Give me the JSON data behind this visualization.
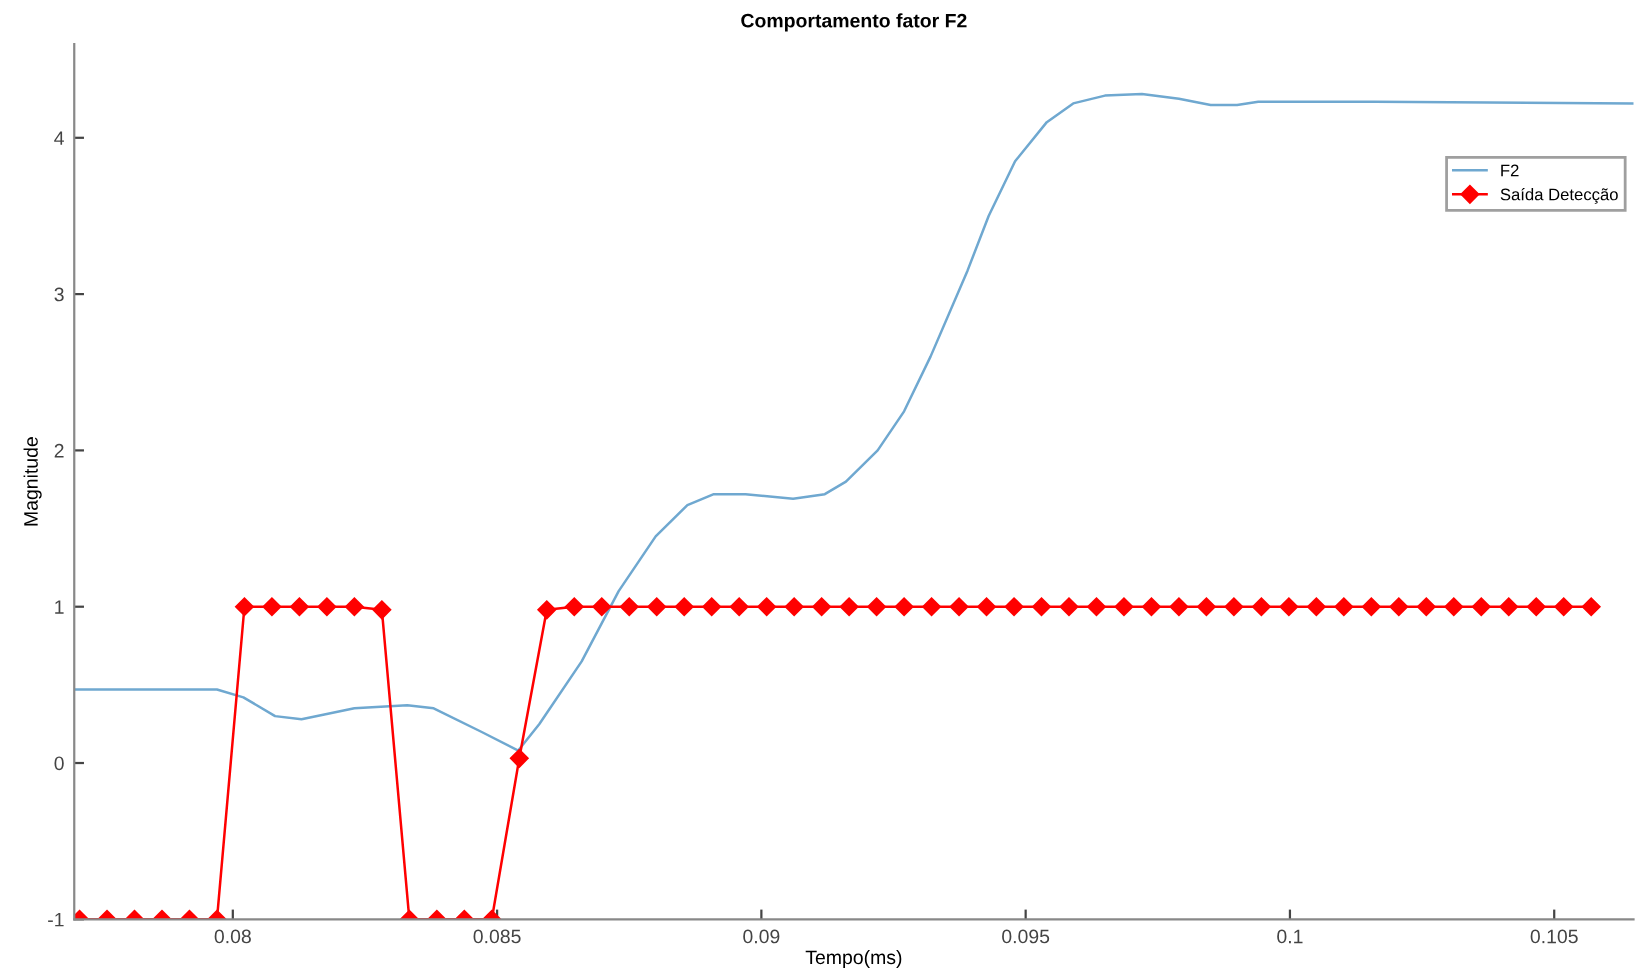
{
  "chart_data": {
    "type": "line",
    "title": "Comportamento fator F2",
    "xlabel": "Tempo(ms)",
    "ylabel": "Magnitude",
    "xlim": [
      0.077,
      0.1065
    ],
    "xticks": [
      0.08,
      0.085,
      0.09,
      0.095,
      0.1,
      0.105
    ],
    "ylim": [
      -1,
      4.6
    ],
    "yticks": [
      -1,
      0,
      1,
      2,
      3,
      4
    ],
    "grid": false,
    "legend": "top right",
    "series": [
      {
        "name": "F2",
        "color": "#6fa8d0",
        "marker": "none",
        "x": [
          0.077,
          0.0797,
          0.0802,
          0.0808,
          0.0813,
          0.0823,
          0.0833,
          0.0838,
          0.0847,
          0.0854,
          0.0858,
          0.0866,
          0.0873,
          0.088,
          0.0886,
          0.0891,
          0.0897,
          0.0906,
          0.0912,
          0.0916,
          0.0922,
          0.0927,
          0.0932,
          0.0939,
          0.0943,
          0.0948,
          0.0954,
          0.0959,
          0.0965,
          0.0972,
          0.0979,
          0.0985,
          0.099,
          0.0994,
          0.1016,
          0.1065
        ],
        "values": [
          0.47,
          0.47,
          0.42,
          0.3,
          0.28,
          0.35,
          0.37,
          0.35,
          0.2,
          0.08,
          0.25,
          0.65,
          1.1,
          1.45,
          1.65,
          1.72,
          1.72,
          1.69,
          1.72,
          1.8,
          2.0,
          2.25,
          2.6,
          3.15,
          3.5,
          3.85,
          4.1,
          4.22,
          4.27,
          4.28,
          4.25,
          4.21,
          4.21,
          4.23,
          4.23,
          4.22
        ]
      },
      {
        "name": "Saída Detecção",
        "color": "#ff0000",
        "marker": "diamond",
        "x": [
          0.0771,
          0.07762,
          0.07814,
          0.07866,
          0.07918,
          0.0797,
          0.08022,
          0.08074,
          0.08126,
          0.08178,
          0.0823,
          0.08282,
          0.08334,
          0.08386,
          0.08438,
          0.0849,
          0.08542,
          0.08594,
          0.08646,
          0.08698,
          0.0875,
          0.08802,
          0.08854,
          0.08906,
          0.08958,
          0.0901,
          0.09062,
          0.09114,
          0.09166,
          0.09218,
          0.0927,
          0.09322,
          0.09374,
          0.09426,
          0.09478,
          0.0953,
          0.09582,
          0.09634,
          0.09686,
          0.09738,
          0.0979,
          0.09842,
          0.09894,
          0.09946,
          0.09998,
          0.1005,
          0.10102,
          0.10154,
          0.10206,
          0.10258,
          0.1031,
          0.10362,
          0.10414,
          0.10466,
          0.10518,
          0.1057
        ],
        "values": [
          -1,
          -1,
          -1,
          -1,
          -1,
          -1,
          1,
          1,
          1,
          1,
          1,
          0.98,
          -1,
          -1,
          -1,
          -1,
          0.03,
          0.98,
          1,
          1,
          1,
          1,
          1,
          1,
          1,
          1,
          1,
          1,
          1,
          1,
          1,
          1,
          1,
          1,
          1,
          1,
          1,
          1,
          1,
          1,
          1,
          1,
          1,
          1,
          1,
          1,
          1,
          1,
          1,
          1,
          1,
          1,
          1,
          1,
          1,
          1
        ]
      }
    ]
  }
}
